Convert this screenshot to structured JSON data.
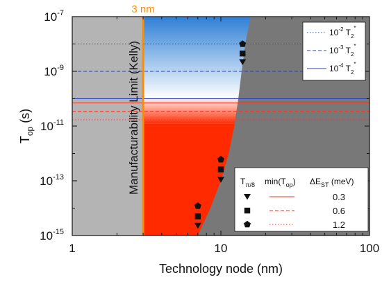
{
  "chart_data": {
    "type": "scatter",
    "xlabel": "Technology node (nm)",
    "ylabel": {
      "main": "T",
      "sub": "op",
      "unit": " (s)"
    },
    "x_scale": "log",
    "y_scale": "log",
    "xlim": [
      1,
      100
    ],
    "ylim": [
      1e-15,
      1e-07
    ],
    "x_ticks": [
      {
        "value": 1,
        "label": "1"
      },
      {
        "value": 10,
        "label": "10"
      },
      {
        "value": 100,
        "label": "100"
      }
    ],
    "y_ticks": [
      {
        "value": 1e-15,
        "base": "10",
        "exp": "-15"
      },
      {
        "value": 1e-13,
        "base": "10",
        "exp": "-13"
      },
      {
        "value": 1e-11,
        "base": "10",
        "exp": "-11"
      },
      {
        "value": 1e-09,
        "base": "10",
        "exp": "-9"
      },
      {
        "value": 1e-07,
        "base": "10",
        "exp": "-7"
      }
    ],
    "manufacturability_limit": {
      "x": 3,
      "top_label": "3 nm",
      "label": "Manufacturability Limit (Kelly)",
      "color": "#ff8c00"
    },
    "t2_reference_lines": [
      {
        "y": 1e-08,
        "label_base": "10",
        "label_exp": "-2",
        "label_t": "T",
        "label_sub": "2",
        "label_sup": "*",
        "style": "dotted",
        "color": "#2b3fc0"
      },
      {
        "y": 1e-09,
        "label_base": "10",
        "label_exp": "-3",
        "label_t": "T",
        "label_sub": "2",
        "label_sup": "*",
        "style": "dashed",
        "color": "#2b3fc0"
      },
      {
        "y": 1e-10,
        "label_base": "10",
        "label_exp": "-4",
        "label_t": "T",
        "label_sub": "2",
        "label_sup": "*",
        "style": "solid",
        "color": "#2b3fc0"
      }
    ],
    "min_top_lines": [
      {
        "delta_est": "0.3",
        "y": 7e-11,
        "style": "solid",
        "color": "#e83a2a"
      },
      {
        "delta_est": "0.6",
        "y": 3.5e-11,
        "style": "dashed",
        "color": "#e83a2a"
      },
      {
        "delta_est": "1.2",
        "y": 1.7e-11,
        "style": "dotted",
        "color": "#e83a2a"
      }
    ],
    "boundary_curve": {
      "points": [
        [
          7,
          1e-15
        ],
        [
          8.5,
          1e-14
        ],
        [
          10,
          1e-13
        ],
        [
          11.3,
          1e-12
        ],
        [
          12.3,
          1e-11
        ],
        [
          13.1,
          1e-10
        ],
        [
          13.8,
          1e-09
        ],
        [
          14.6,
          1e-08
        ],
        [
          15.8,
          1e-07
        ]
      ]
    },
    "series": [
      {
        "marker": "triangle-down",
        "x": [
          7,
          10,
          14
        ],
        "y": [
          2.3e-15,
          1.1e-13,
          2.2e-09
        ]
      },
      {
        "marker": "square",
        "x": [
          7,
          10,
          14
        ],
        "y": [
          5e-15,
          2.6e-13,
          4.5e-09
        ]
      },
      {
        "marker": "pentagon",
        "x": [
          7,
          10,
          14
        ],
        "y": [
          1.2e-14,
          6e-13,
          1e-08
        ]
      }
    ],
    "legend": {
      "position": "bottom-right",
      "col1": {
        "t": "T",
        "sub": "π/8"
      },
      "col2": {
        "t": "min(T",
        "sub": "op",
        "end": ")"
      },
      "col3": {
        "t": "ΔE",
        "sub": "ST",
        "end": " (meV)"
      }
    },
    "colors": {
      "gray_light": "#b4b4b4",
      "gray_dark": "#787878",
      "red": "#ff2a00",
      "blue": "#2e7fd6",
      "marker": "#111111"
    }
  }
}
